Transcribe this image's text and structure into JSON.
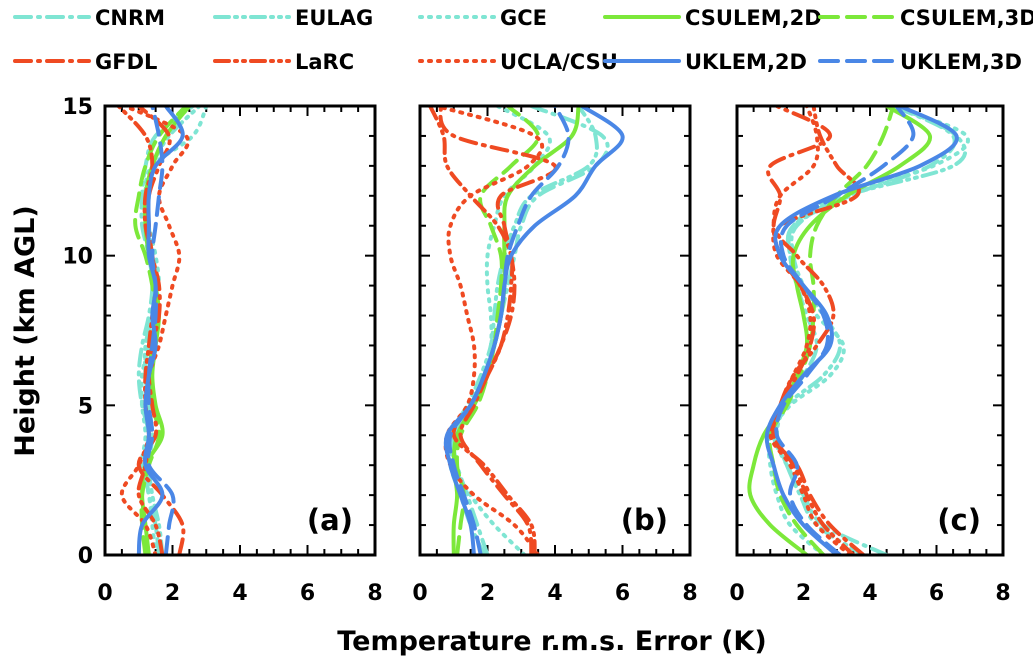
{
  "legend": [
    {
      "name": "CNRM",
      "color": "#7fe5d3",
      "dash": "dashdot"
    },
    {
      "name": "EULAG",
      "color": "#7fe5d3",
      "dash": "dashdotdot"
    },
    {
      "name": "GCE",
      "color": "#7fe5d3",
      "dash": "dot"
    },
    {
      "name": "CSULEM,2D",
      "color": "#7ce83a",
      "dash": "solid"
    },
    {
      "name": "CSULEM,3D",
      "color": "#7ce83a",
      "dash": "dash"
    },
    {
      "name": "GFDL",
      "color": "#ef4a22",
      "dash": "dashdot"
    },
    {
      "name": "LaRC",
      "color": "#ef4a22",
      "dash": "dashdotdot"
    },
    {
      "name": "UCLA/CSU",
      "color": "#ef4a22",
      "dash": "dot"
    },
    {
      "name": "UKLEM,2D",
      "color": "#4a87e6",
      "dash": "solid"
    },
    {
      "name": "UKLEM,3D",
      "color": "#4a87e6",
      "dash": "dash"
    }
  ],
  "xlabel": "Temperature r.m.s. Error (K)",
  "ylabel": "Height (km AGL)",
  "chart_data": [
    {
      "type": "line",
      "panel_label": "(a)",
      "xlim": [
        0,
        8
      ],
      "ylim": [
        0,
        15
      ],
      "xticks": [
        0,
        2,
        4,
        6,
        8
      ],
      "yticks": [
        0,
        5,
        10,
        15
      ],
      "y": [
        0,
        1,
        2,
        3,
        4,
        5,
        6,
        7,
        8,
        9,
        10,
        11,
        12,
        13,
        14,
        15
      ],
      "series": [
        {
          "name": "CNRM",
          "values": [
            1.6,
            1.5,
            1.3,
            1.2,
            1.3,
            1.1,
            1.0,
            1.1,
            1.3,
            1.4,
            1.3,
            1.1,
            1.1,
            1.2,
            1.5,
            2.6
          ]
        },
        {
          "name": "EULAG",
          "values": [
            1.7,
            1.6,
            1.4,
            1.3,
            1.4,
            1.3,
            1.2,
            1.2,
            1.4,
            1.5,
            1.4,
            1.3,
            1.3,
            1.4,
            1.9,
            2.8
          ]
        },
        {
          "name": "GCE",
          "values": [
            1.5,
            1.4,
            1.3,
            1.1,
            1.2,
            1.1,
            1.1,
            1.3,
            1.5,
            1.6,
            1.5,
            1.3,
            1.2,
            1.4,
            2.6,
            3.0
          ]
        },
        {
          "name": "CSULEM,2D",
          "values": [
            1.3,
            1.2,
            1.1,
            1.2,
            1.7,
            1.5,
            1.4,
            1.5,
            1.6,
            1.5,
            1.3,
            1.2,
            1.2,
            1.4,
            1.8,
            2.5
          ]
        },
        {
          "name": "CSULEM,3D",
          "values": [
            1.2,
            1.1,
            1.1,
            1.3,
            1.6,
            1.4,
            1.3,
            1.4,
            1.5,
            1.4,
            1.2,
            0.9,
            1.0,
            1.2,
            1.6,
            2.4
          ]
        },
        {
          "name": "GFDL",
          "values": [
            2.2,
            2.3,
            1.7,
            1.0,
            1.5,
            1.4,
            1.3,
            1.4,
            1.6,
            1.6,
            1.4,
            1.3,
            1.3,
            1.6,
            1.9,
            1.0
          ]
        },
        {
          "name": "LaRC",
          "values": [
            1.7,
            1.5,
            1.0,
            1.2,
            1.3,
            1.2,
            1.2,
            1.3,
            1.4,
            1.5,
            1.4,
            1.2,
            1.2,
            1.4,
            1.2,
            0.4
          ]
        },
        {
          "name": "UCLA/CSU",
          "values": [
            1.5,
            1.2,
            0.5,
            1.0,
            1.3,
            1.2,
            1.3,
            1.6,
            1.8,
            2.0,
            2.2,
            1.9,
            1.6,
            2.0,
            2.4,
            0.6
          ]
        },
        {
          "name": "UKLEM,2D",
          "values": [
            1.0,
            1.1,
            1.7,
            1.2,
            1.3,
            1.2,
            1.3,
            1.5,
            1.4,
            1.5,
            1.3,
            1.3,
            1.3,
            1.5,
            2.3,
            1.8
          ]
        },
        {
          "name": "UKLEM,3D",
          "values": [
            1.8,
            1.9,
            2.0,
            1.3,
            1.4,
            1.3,
            1.3,
            1.4,
            1.5,
            1.5,
            1.4,
            1.5,
            1.6,
            1.7,
            1.6,
            1.4
          ]
        }
      ]
    },
    {
      "type": "line",
      "panel_label": "(b)",
      "xlim": [
        0,
        8
      ],
      "ylim": [
        0,
        15
      ],
      "xticks": [
        0,
        2,
        4,
        6,
        8
      ],
      "yticks": [
        0,
        5,
        10,
        15
      ],
      "y": [
        0,
        1,
        2,
        3,
        4,
        5,
        6,
        7,
        8,
        9,
        10,
        11,
        12,
        13,
        14,
        15
      ],
      "series": [
        {
          "name": "CNRM",
          "values": [
            2.0,
            1.7,
            1.4,
            1.1,
            1.0,
            1.5,
            1.9,
            2.2,
            2.4,
            2.6,
            2.8,
            3.0,
            3.5,
            5.2,
            5.4,
            3.3
          ]
        },
        {
          "name": "EULAG",
          "values": [
            1.9,
            1.5,
            1.2,
            0.9,
            0.9,
            1.4,
            1.8,
            2.1,
            2.2,
            2.3,
            2.5,
            2.8,
            3.3,
            5.0,
            5.2,
            4.7
          ]
        },
        {
          "name": "GCE",
          "values": [
            3.1,
            2.2,
            1.5,
            1.0,
            1.0,
            1.5,
            1.9,
            2.1,
            2.1,
            2.0,
            2.0,
            2.2,
            2.5,
            3.4,
            3.8,
            2.3
          ]
        },
        {
          "name": "CSULEM,2D",
          "values": [
            1.0,
            1.0,
            1.1,
            1.0,
            1.1,
            1.6,
            2.0,
            2.2,
            2.4,
            2.5,
            2.5,
            2.5,
            2.6,
            3.4,
            4.5,
            4.7
          ]
        },
        {
          "name": "CSULEM,3D",
          "values": [
            1.1,
            1.2,
            1.3,
            1.1,
            1.2,
            1.7,
            2.0,
            2.2,
            2.3,
            2.4,
            2.4,
            2.1,
            1.8,
            2.7,
            3.5,
            2.6
          ]
        },
        {
          "name": "GFDL",
          "values": [
            3.3,
            3.2,
            2.5,
            1.8,
            1.2,
            1.6,
            2.0,
            2.4,
            2.7,
            2.8,
            2.7,
            2.5,
            2.4,
            4.0,
            1.0,
            0.6
          ]
        },
        {
          "name": "LaRC",
          "values": [
            3.4,
            3.3,
            2.6,
            1.9,
            1.0,
            1.5,
            2.0,
            2.4,
            2.6,
            2.7,
            2.7,
            2.3,
            1.5,
            0.8,
            0.7,
            0.3
          ]
        },
        {
          "name": "UCLA/CSU",
          "values": [
            3.5,
            2.8,
            1.6,
            0.9,
            0.8,
            1.4,
            1.6,
            1.6,
            1.4,
            1.2,
            0.9,
            0.9,
            1.5,
            3.2,
            3.4,
            0.5
          ]
        },
        {
          "name": "UKLEM,2D",
          "values": [
            1.6,
            1.5,
            1.2,
            0.9,
            0.8,
            1.5,
            1.9,
            2.2,
            2.4,
            2.5,
            2.7,
            3.4,
            4.6,
            5.2,
            6.0,
            4.8
          ]
        },
        {
          "name": "UKLEM,3D",
          "values": [
            1.8,
            1.6,
            1.3,
            1.0,
            0.9,
            1.5,
            1.9,
            2.2,
            2.4,
            2.5,
            2.6,
            2.9,
            3.3,
            4.1,
            4.4,
            4.0
          ]
        }
      ]
    },
    {
      "type": "line",
      "panel_label": "(c)",
      "xlim": [
        0,
        8
      ],
      "ylim": [
        0,
        15
      ],
      "xticks": [
        0,
        2,
        4,
        6,
        8
      ],
      "yticks": [
        0,
        5,
        10,
        15
      ],
      "y": [
        0,
        1,
        2,
        3,
        4,
        5,
        6,
        7,
        8,
        9,
        10,
        11,
        12,
        13,
        14,
        15
      ],
      "series": [
        {
          "name": "CNRM",
          "values": [
            4.5,
            2.6,
            2.0,
            1.5,
            1.1,
            1.3,
            2.0,
            2.4,
            2.1,
            1.8,
            1.6,
            1.7,
            3.4,
            5.8,
            6.5,
            4.7
          ]
        },
        {
          "name": "EULAG",
          "values": [
            3.8,
            2.4,
            1.9,
            1.5,
            1.2,
            1.5,
            2.6,
            3.1,
            2.6,
            2.0,
            1.7,
            1.8,
            3.3,
            6.5,
            6.6,
            4.8
          ]
        },
        {
          "name": "GCE",
          "values": [
            2.6,
            1.6,
            1.2,
            1.0,
            1.0,
            1.6,
            2.8,
            3.2,
            2.4,
            1.9,
            1.6,
            1.7,
            3.0,
            5.9,
            6.9,
            4.6
          ]
        },
        {
          "name": "CSULEM,2D",
          "values": [
            2.1,
            1.0,
            0.4,
            0.5,
            0.8,
            1.4,
            1.8,
            2.1,
            2.0,
            1.8,
            1.7,
            2.2,
            3.3,
            4.9,
            5.8,
            4.5
          ]
        },
        {
          "name": "CSULEM,3D",
          "values": [
            2.6,
            1.8,
            1.3,
            1.1,
            1.0,
            1.5,
            1.9,
            2.2,
            2.3,
            2.3,
            2.2,
            2.4,
            3.0,
            3.9,
            4.4,
            4.7
          ]
        },
        {
          "name": "GFDL",
          "values": [
            3.8,
            2.8,
            2.2,
            1.8,
            1.0,
            1.3,
            1.8,
            2.2,
            2.3,
            1.9,
            1.3,
            1.1,
            1.3,
            1.0,
            2.8,
            1.2
          ]
        },
        {
          "name": "LaRC",
          "values": [
            3.5,
            2.6,
            2.1,
            1.7,
            1.1,
            1.3,
            1.7,
            2.4,
            2.9,
            2.6,
            1.8,
            1.3,
            3.6,
            3.0,
            2.5,
            2.3
          ]
        },
        {
          "name": "UCLA/CSU",
          "values": [
            3.4,
            2.4,
            2.0,
            1.6,
            1.0,
            1.3,
            1.7,
            2.1,
            2.2,
            1.9,
            1.2,
            1.1,
            1.3,
            2.3,
            2.4,
            2.1
          ]
        },
        {
          "name": "UKLEM,2D",
          "values": [
            3.0,
            2.0,
            1.4,
            1.1,
            0.9,
            1.3,
            2.0,
            2.8,
            2.7,
            2.0,
            1.3,
            1.3,
            2.9,
            5.5,
            6.6,
            4.9
          ]
        },
        {
          "name": "UKLEM,3D",
          "values": [
            3.1,
            2.1,
            1.6,
            1.8,
            1.2,
            1.4,
            2.1,
            2.7,
            2.6,
            2.0,
            1.4,
            1.5,
            3.0,
            4.4,
            5.3,
            4.8
          ]
        }
      ]
    }
  ]
}
